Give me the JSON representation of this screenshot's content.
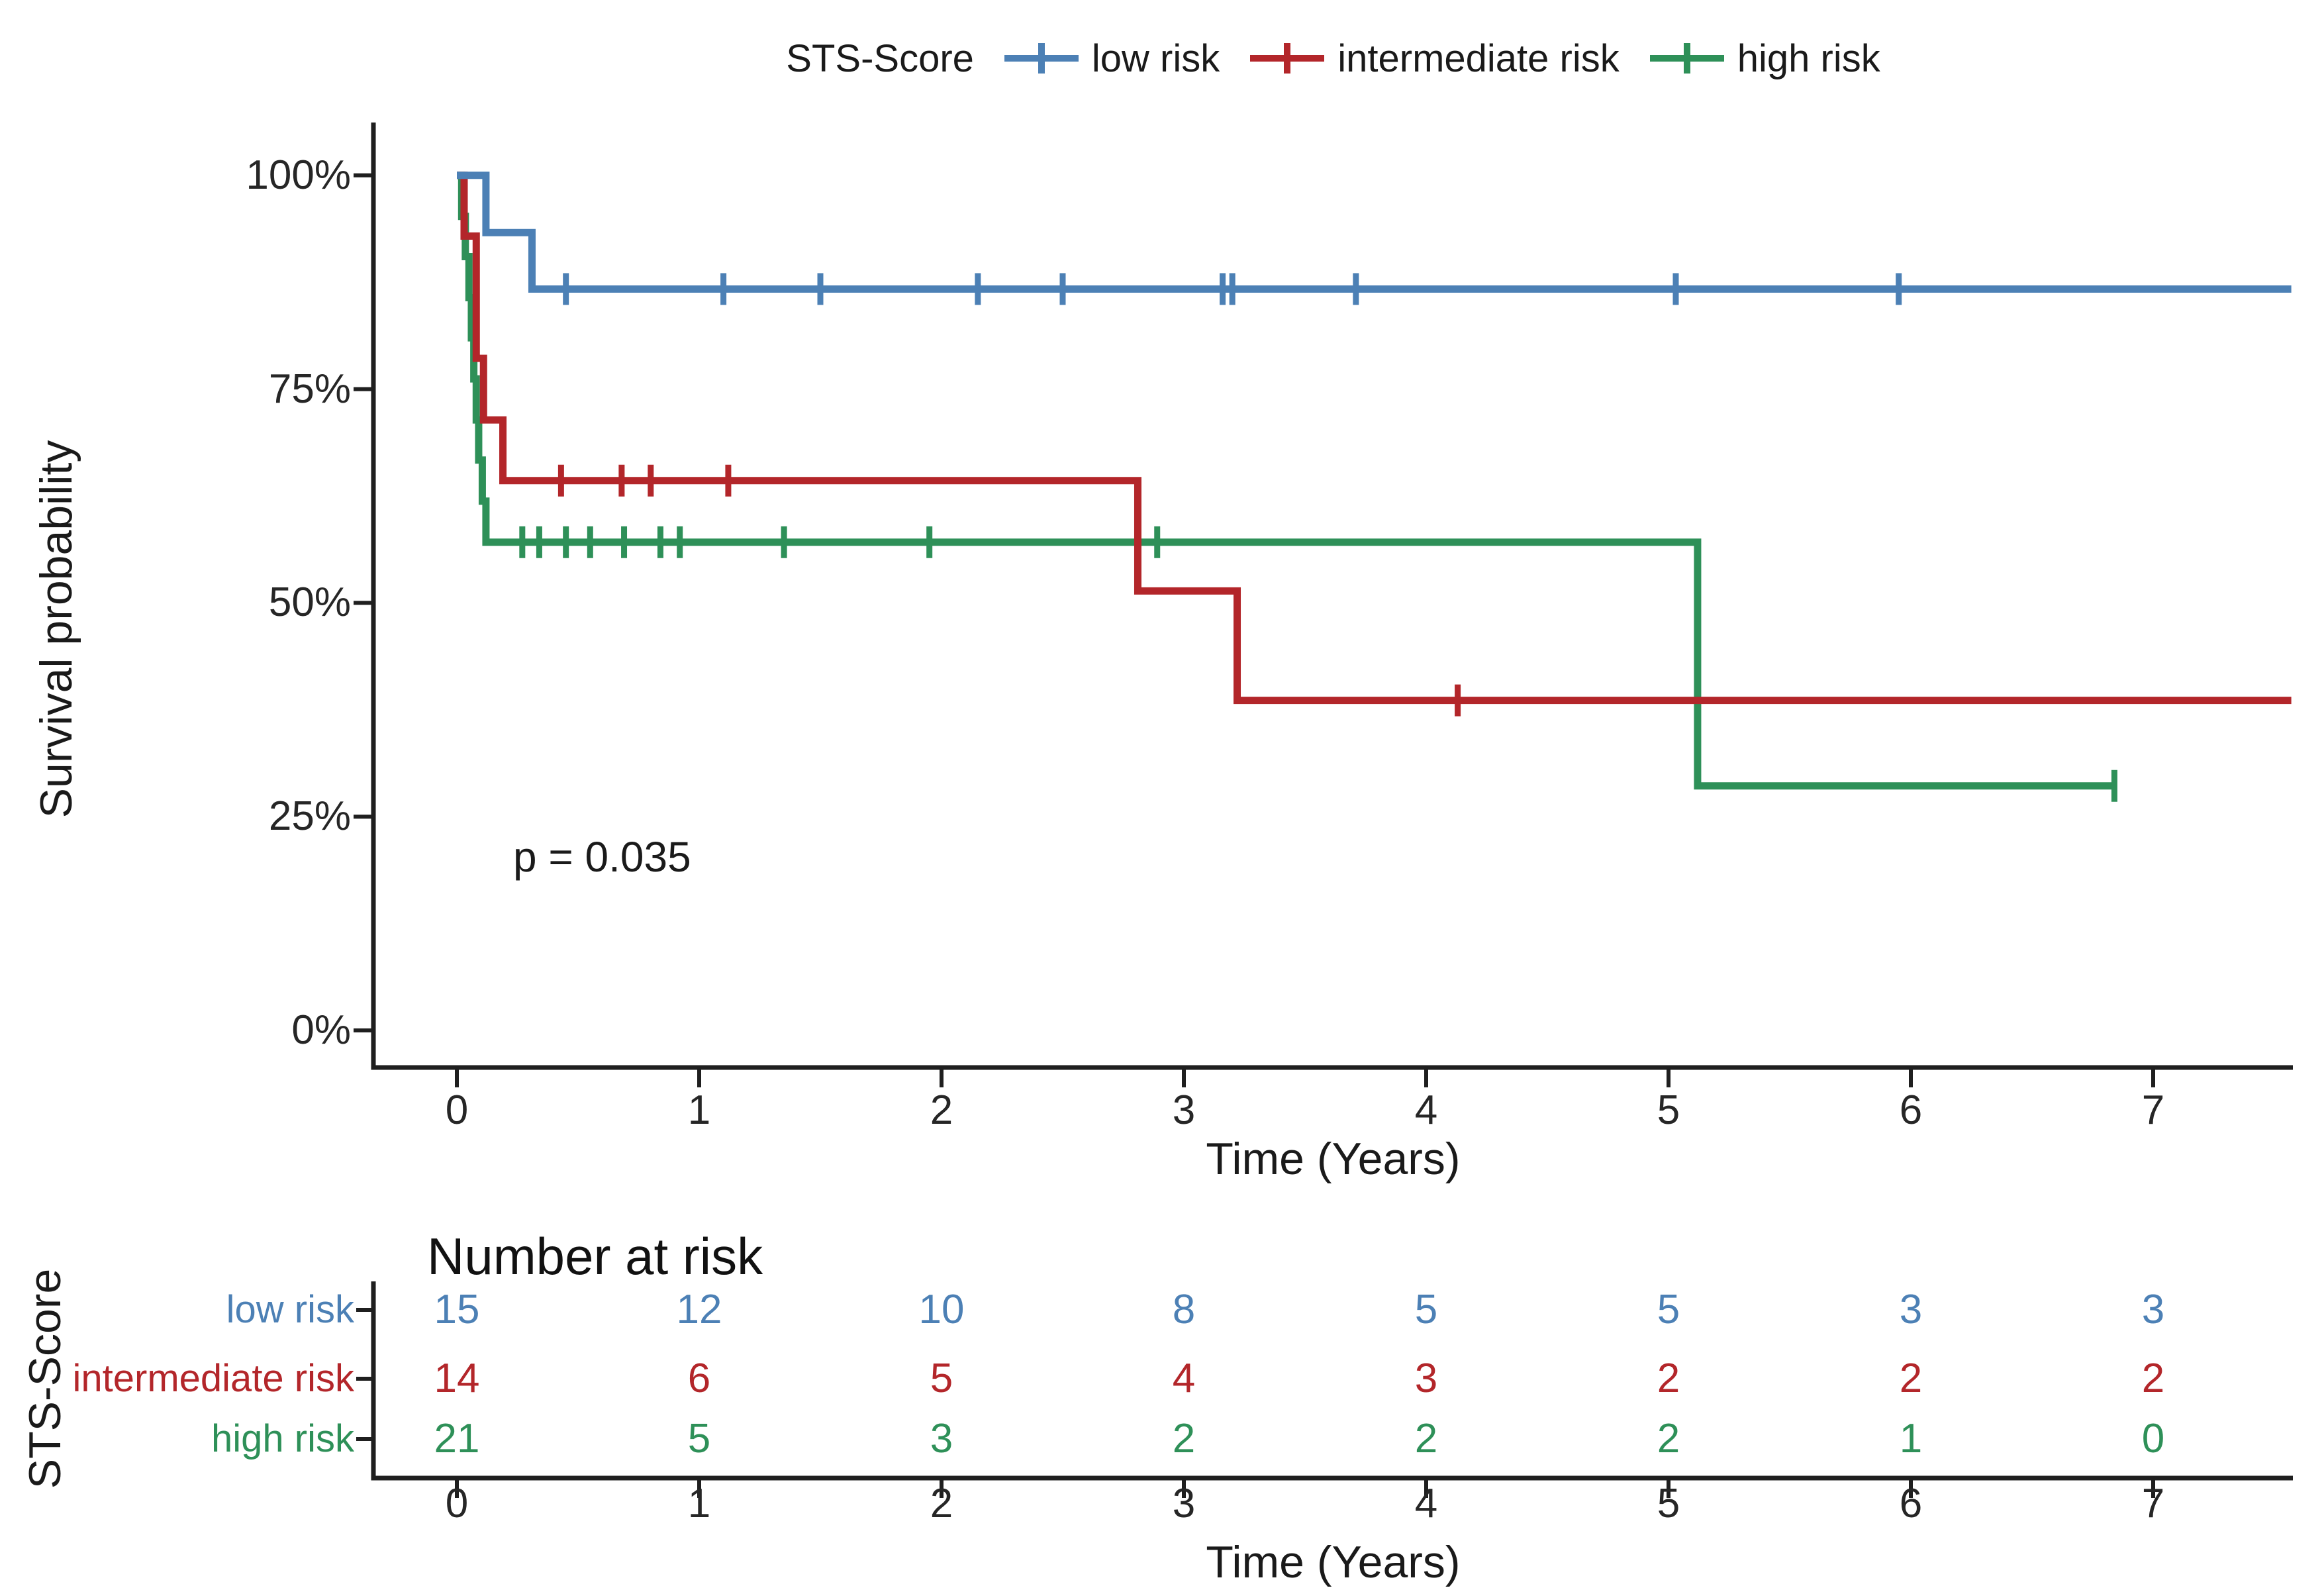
{
  "legend": {
    "title": "STS-Score",
    "items": [
      {
        "label": "low risk",
        "color": "#4C80B5"
      },
      {
        "label": "intermediate risk",
        "color": "#B3262A"
      },
      {
        "label": "high risk",
        "color": "#2E9058"
      }
    ]
  },
  "chart_data": {
    "type": "line",
    "subtype": "kaplan-meier-step",
    "title": "",
    "xlabel": "Time (Years)",
    "ylabel": "Survival probability",
    "pvalue": "p = 0.035",
    "xlim": [
      -0.34,
      7.57
    ],
    "ylim": [
      0,
      100
    ],
    "grid": "off",
    "legend_position": "top",
    "x_ticks": [
      {
        "label": "0",
        "value": 0
      },
      {
        "label": "1",
        "value": 1
      },
      {
        "label": "2",
        "value": 2
      },
      {
        "label": "3",
        "value": 3
      },
      {
        "label": "4",
        "value": 4
      },
      {
        "label": "5",
        "value": 5
      },
      {
        "label": "6",
        "value": 6
      },
      {
        "label": "7",
        "value": 7
      }
    ],
    "y_ticks": [
      {
        "label": "100%",
        "value": 100
      },
      {
        "label": "75%",
        "value": 75
      },
      {
        "label": "50%",
        "value": 50
      },
      {
        "label": "25%",
        "value": 25
      },
      {
        "label": "0%",
        "value": 0
      }
    ],
    "series": [
      {
        "name": "low risk",
        "color": "#4C80B5",
        "steps": [
          [
            0,
            100
          ],
          [
            0.12,
            100
          ],
          [
            0.12,
            93.3
          ],
          [
            0.31,
            93.3
          ],
          [
            0.31,
            86.7
          ],
          [
            7.57,
            86.7
          ]
        ],
        "censors": [
          [
            0.45,
            86.7
          ],
          [
            1.1,
            86.7
          ],
          [
            1.5,
            86.7
          ],
          [
            2.15,
            86.7
          ],
          [
            2.5,
            86.7
          ],
          [
            3.16,
            86.7
          ],
          [
            3.2,
            86.7
          ],
          [
            3.71,
            86.7
          ],
          [
            5.03,
            86.7
          ],
          [
            5.95,
            86.7
          ]
        ]
      },
      {
        "name": "intermediate risk",
        "color": "#B3262A",
        "steps": [
          [
            0,
            100
          ],
          [
            0.03,
            100
          ],
          [
            0.03,
            92.9
          ],
          [
            0.08,
            92.9
          ],
          [
            0.08,
            78.6
          ],
          [
            0.11,
            78.6
          ],
          [
            0.11,
            71.4
          ],
          [
            0.19,
            71.4
          ],
          [
            0.19,
            64.3
          ],
          [
            2.81,
            64.3
          ],
          [
            2.81,
            51.4
          ],
          [
            3.22,
            51.4
          ],
          [
            3.22,
            38.6
          ],
          [
            7.57,
            38.6
          ]
        ],
        "censors": [
          [
            0.43,
            64.3
          ],
          [
            0.68,
            64.3
          ],
          [
            0.8,
            64.3
          ],
          [
            1.12,
            64.3
          ],
          [
            4.13,
            38.6
          ]
        ]
      },
      {
        "name": "high risk",
        "color": "#2E9058",
        "steps": [
          [
            0,
            100
          ],
          [
            0.02,
            100
          ],
          [
            0.02,
            95.2
          ],
          [
            0.035,
            95.2
          ],
          [
            0.035,
            90.5
          ],
          [
            0.05,
            90.5
          ],
          [
            0.05,
            85.7
          ],
          [
            0.06,
            85.7
          ],
          [
            0.06,
            81
          ],
          [
            0.07,
            81
          ],
          [
            0.07,
            76.2
          ],
          [
            0.08,
            76.2
          ],
          [
            0.08,
            71.4
          ],
          [
            0.09,
            71.4
          ],
          [
            0.09,
            66.7
          ],
          [
            0.105,
            66.7
          ],
          [
            0.105,
            61.9
          ],
          [
            0.12,
            61.9
          ],
          [
            0.12,
            57.1
          ],
          [
            5.12,
            57.1
          ],
          [
            5.12,
            28.6
          ],
          [
            6.84,
            28.6
          ]
        ],
        "censors": [
          [
            0.27,
            57.1
          ],
          [
            0.34,
            57.1
          ],
          [
            0.45,
            57.1
          ],
          [
            0.55,
            57.1
          ],
          [
            0.69,
            57.1
          ],
          [
            0.84,
            57.1
          ],
          [
            0.92,
            57.1
          ],
          [
            1.35,
            57.1
          ],
          [
            1.95,
            57.1
          ],
          [
            2.89,
            57.1
          ],
          [
            6.84,
            28.6
          ]
        ]
      }
    ]
  },
  "risk_table": {
    "title": "Number at risk",
    "ylabel": "STS-Score",
    "xlabel": "Time (Years)",
    "columns": [
      {
        "label": "0"
      },
      {
        "label": "1"
      },
      {
        "label": "2"
      },
      {
        "label": "3"
      },
      {
        "label": "4"
      },
      {
        "label": "5"
      },
      {
        "label": "6"
      },
      {
        "label": "7"
      }
    ],
    "rows": [
      {
        "label": "low risk",
        "color": "#4C80B5",
        "counts": [
          15,
          12,
          10,
          8,
          5,
          5,
          3,
          3
        ]
      },
      {
        "label": "intermediate risk",
        "color": "#B3262A",
        "counts": [
          14,
          6,
          5,
          4,
          3,
          2,
          2,
          2
        ]
      },
      {
        "label": "high risk",
        "color": "#2E9058",
        "counts": [
          21,
          5,
          3,
          2,
          2,
          2,
          1,
          0
        ]
      }
    ]
  }
}
